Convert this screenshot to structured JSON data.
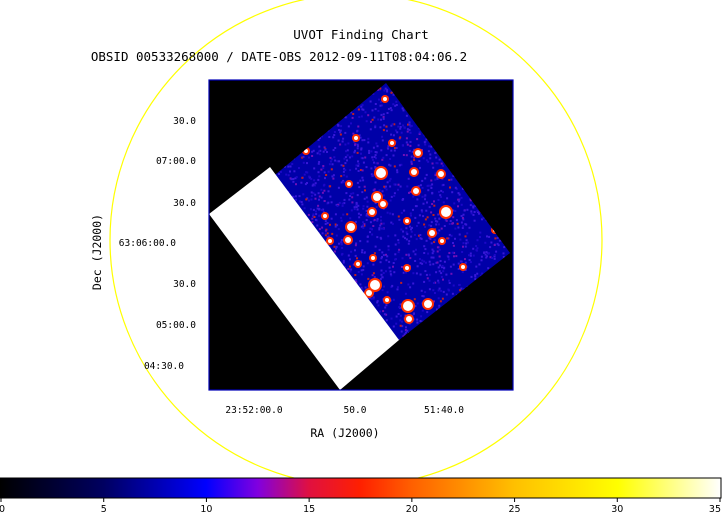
{
  "title": "UVOT Finding Chart",
  "subtitle": "OBSID 00533268000 / DATE-OBS 2012-09-11T08:04:06.2",
  "colors": {
    "background": "#ffffff",
    "circle": "#ffff00",
    "frame": "#0000b8",
    "image_bg": "#000000",
    "noise_low": "#0000a8",
    "noise_mid": "#3818d8",
    "noise_hot": "#c02020",
    "star": "#ffffff"
  },
  "chart_data": {
    "type": "heatmap",
    "xlabel": "RA (J2000)",
    "ylabel": "Dec (J2000)",
    "x_ticks": [
      "23:52:00.0",
      "50.0",
      "51:40.0"
    ],
    "y_ticks": [
      "30.0",
      "07:00.0",
      "30.0",
      "63:06:00.0",
      "30.0",
      "05:00.0",
      "04:30.0"
    ],
    "colorbar": {
      "min": 0,
      "max": 35,
      "ticks": [
        "0",
        "5",
        "10",
        "15",
        "20",
        "25",
        "30",
        "35"
      ],
      "stops": [
        {
          "value": 0,
          "color": "#000000"
        },
        {
          "value": 5,
          "color": "#000060"
        },
        {
          "value": 10,
          "color": "#0000ff"
        },
        {
          "value": 12.5,
          "color": "#8000e0"
        },
        {
          "value": 15,
          "color": "#e01040"
        },
        {
          "value": 17.5,
          "color": "#ff2000"
        },
        {
          "value": 20,
          "color": "#ff6000"
        },
        {
          "value": 25,
          "color": "#ffc000"
        },
        {
          "value": 30,
          "color": "#ffff00"
        },
        {
          "value": 35,
          "color": "#ffffff"
        }
      ]
    }
  }
}
